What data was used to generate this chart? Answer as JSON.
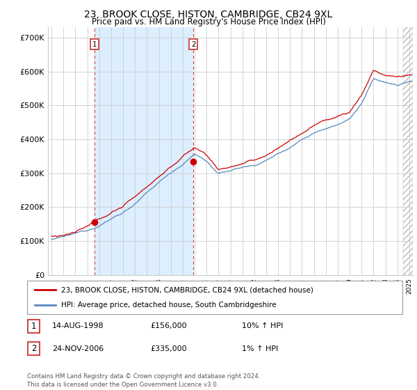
{
  "title": "23, BROOK CLOSE, HISTON, CAMBRIDGE, CB24 9XL",
  "subtitle": "Price paid vs. HM Land Registry's House Price Index (HPI)",
  "ylim": [
    0,
    730000
  ],
  "yticks": [
    0,
    100000,
    200000,
    300000,
    400000,
    500000,
    600000,
    700000
  ],
  "ytick_labels": [
    "£0",
    "£100K",
    "£200K",
    "£300K",
    "£400K",
    "£500K",
    "£600K",
    "£700K"
  ],
  "line1_color": "#cc0000",
  "line2_color": "#5588bb",
  "shade_color": "#ddeeff",
  "transaction1_x": 1998.62,
  "transaction1_y": 156000,
  "transaction2_x": 2006.9,
  "transaction2_y": 335000,
  "legend_line1": "23, BROOK CLOSE, HISTON, CAMBRIDGE, CB24 9XL (detached house)",
  "legend_line2": "HPI: Average price, detached house, South Cambridgeshire",
  "footer": "Contains HM Land Registry data © Crown copyright and database right 2024.\nThis data is licensed under the Open Government Licence v3.0.",
  "table_rows": [
    {
      "num": "1",
      "date": "14-AUG-1998",
      "price": "£156,000",
      "hpi": "10% ↑ HPI"
    },
    {
      "num": "2",
      "date": "24-NOV-2006",
      "price": "£335,000",
      "hpi": "1% ↑ HPI"
    }
  ],
  "xlim_start": 1994.7,
  "xlim_end": 2025.3
}
